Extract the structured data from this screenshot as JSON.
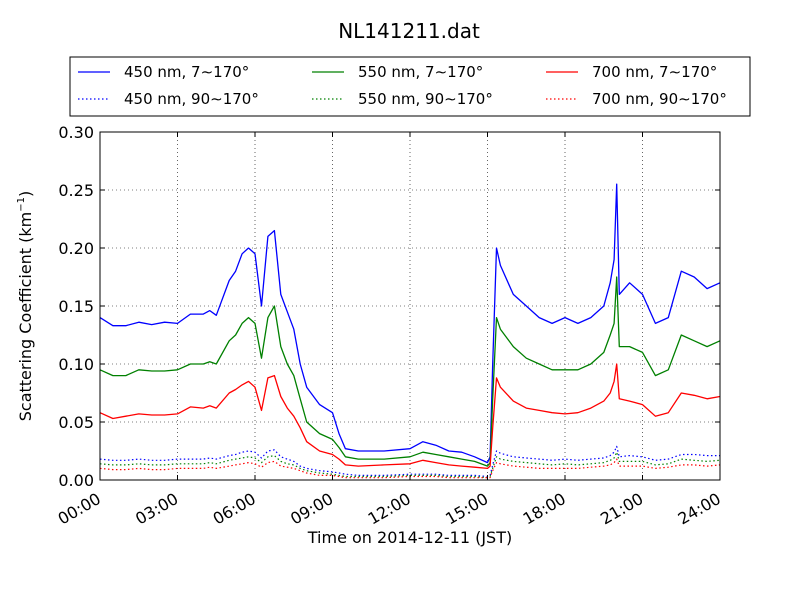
{
  "chart_data": {
    "type": "line",
    "title": "NL141211.dat",
    "xlabel": "Time on 2014-12-11 (JST)",
    "ylabel": "Scattering Coefficient (km",
    "ylabel_sup": "−1",
    "ylabel_close": ")",
    "xlim": [
      0,
      24
    ],
    "ylim": [
      0,
      0.3
    ],
    "grid": true,
    "legend_position": "top",
    "x_ticks": [
      0,
      3,
      6,
      9,
      12,
      15,
      18,
      21,
      24
    ],
    "x_tick_labels": [
      "00:00",
      "03:00",
      "06:00",
      "09:00",
      "12:00",
      "15:00",
      "18:00",
      "21:00",
      "24:00"
    ],
    "y_ticks": [
      0.0,
      0.05,
      0.1,
      0.15,
      0.2,
      0.25,
      0.3
    ],
    "y_tick_labels": [
      "0.00",
      "0.05",
      "0.10",
      "0.15",
      "0.20",
      "0.25",
      "0.30"
    ],
    "x": [
      0.0,
      0.5,
      1.0,
      1.5,
      2.0,
      2.5,
      3.0,
      3.5,
      4.0,
      4.25,
      4.5,
      5.0,
      5.25,
      5.5,
      5.75,
      6.0,
      6.25,
      6.5,
      6.75,
      7.0,
      7.25,
      7.5,
      7.75,
      8.0,
      8.5,
      9.0,
      9.25,
      9.5,
      10.0,
      11.0,
      12.0,
      12.5,
      13.0,
      13.5,
      14.0,
      14.5,
      15.0,
      15.1,
      15.2,
      15.35,
      15.5,
      16.0,
      16.5,
      17.0,
      17.5,
      18.0,
      18.5,
      19.0,
      19.5,
      19.75,
      19.9,
      20.0,
      20.1,
      20.5,
      21.0,
      21.5,
      22.0,
      22.5,
      23.0,
      23.5,
      24.0
    ],
    "series": [
      {
        "name": "450 nm, 7∼170°",
        "color": "#0000ff",
        "style": "solid",
        "values": [
          0.14,
          0.133,
          0.133,
          0.136,
          0.134,
          0.136,
          0.135,
          0.143,
          0.143,
          0.146,
          0.142,
          0.172,
          0.18,
          0.195,
          0.2,
          0.195,
          0.15,
          0.21,
          0.215,
          0.16,
          0.145,
          0.13,
          0.1,
          0.08,
          0.065,
          0.058,
          0.04,
          0.027,
          0.025,
          0.025,
          0.027,
          0.033,
          0.03,
          0.025,
          0.024,
          0.02,
          0.015,
          0.02,
          0.1,
          0.2,
          0.185,
          0.16,
          0.15,
          0.14,
          0.135,
          0.14,
          0.135,
          0.14,
          0.15,
          0.17,
          0.19,
          0.255,
          0.16,
          0.17,
          0.16,
          0.135,
          0.14,
          0.18,
          0.175,
          0.165,
          0.17
        ]
      },
      {
        "name": "550 nm, 7∼170°",
        "color": "#008000",
        "style": "solid",
        "values": [
          0.095,
          0.09,
          0.09,
          0.095,
          0.094,
          0.094,
          0.095,
          0.1,
          0.1,
          0.102,
          0.1,
          0.12,
          0.125,
          0.135,
          0.14,
          0.135,
          0.105,
          0.14,
          0.15,
          0.115,
          0.1,
          0.09,
          0.07,
          0.05,
          0.04,
          0.035,
          0.028,
          0.02,
          0.018,
          0.018,
          0.02,
          0.024,
          0.022,
          0.02,
          0.018,
          0.016,
          0.012,
          0.015,
          0.07,
          0.14,
          0.13,
          0.115,
          0.105,
          0.1,
          0.095,
          0.095,
          0.095,
          0.1,
          0.11,
          0.125,
          0.135,
          0.175,
          0.115,
          0.115,
          0.11,
          0.09,
          0.095,
          0.125,
          0.12,
          0.115,
          0.12
        ]
      },
      {
        "name": "700 nm, 7∼170°",
        "color": "#ff0000",
        "style": "solid",
        "values": [
          0.058,
          0.053,
          0.055,
          0.057,
          0.056,
          0.056,
          0.057,
          0.063,
          0.062,
          0.064,
          0.062,
          0.075,
          0.078,
          0.082,
          0.085,
          0.08,
          0.06,
          0.088,
          0.09,
          0.072,
          0.062,
          0.055,
          0.045,
          0.033,
          0.025,
          0.022,
          0.018,
          0.013,
          0.012,
          0.013,
          0.014,
          0.017,
          0.015,
          0.013,
          0.012,
          0.011,
          0.01,
          0.012,
          0.045,
          0.088,
          0.08,
          0.068,
          0.062,
          0.06,
          0.058,
          0.057,
          0.058,
          0.062,
          0.068,
          0.075,
          0.085,
          0.1,
          0.07,
          0.068,
          0.065,
          0.055,
          0.058,
          0.075,
          0.073,
          0.07,
          0.072
        ]
      },
      {
        "name": "450 nm, 90∼170°",
        "color": "#0000ff",
        "style": "dotted",
        "values": [
          0.018,
          0.017,
          0.017,
          0.018,
          0.017,
          0.017,
          0.018,
          0.018,
          0.018,
          0.019,
          0.018,
          0.021,
          0.022,
          0.024,
          0.025,
          0.024,
          0.019,
          0.025,
          0.026,
          0.02,
          0.018,
          0.016,
          0.012,
          0.01,
          0.008,
          0.007,
          0.006,
          0.005,
          0.004,
          0.004,
          0.005,
          0.005,
          0.005,
          0.004,
          0.004,
          0.004,
          0.003,
          0.004,
          0.013,
          0.025,
          0.023,
          0.02,
          0.019,
          0.018,
          0.017,
          0.018,
          0.017,
          0.018,
          0.019,
          0.021,
          0.024,
          0.029,
          0.02,
          0.021,
          0.02,
          0.017,
          0.018,
          0.022,
          0.022,
          0.021,
          0.021
        ]
      },
      {
        "name": "550 nm, 90∼170°",
        "color": "#008000",
        "style": "dotted",
        "values": [
          0.014,
          0.013,
          0.013,
          0.014,
          0.013,
          0.013,
          0.014,
          0.014,
          0.014,
          0.015,
          0.014,
          0.017,
          0.018,
          0.019,
          0.02,
          0.019,
          0.015,
          0.02,
          0.021,
          0.016,
          0.014,
          0.013,
          0.01,
          0.008,
          0.006,
          0.005,
          0.004,
          0.003,
          0.003,
          0.003,
          0.004,
          0.004,
          0.004,
          0.003,
          0.003,
          0.003,
          0.002,
          0.003,
          0.01,
          0.02,
          0.018,
          0.016,
          0.015,
          0.014,
          0.013,
          0.014,
          0.013,
          0.014,
          0.015,
          0.017,
          0.019,
          0.024,
          0.016,
          0.016,
          0.016,
          0.013,
          0.014,
          0.018,
          0.017,
          0.016,
          0.017
        ]
      },
      {
        "name": "700 nm, 90∼170°",
        "color": "#ff0000",
        "style": "dotted",
        "values": [
          0.01,
          0.009,
          0.009,
          0.01,
          0.009,
          0.009,
          0.01,
          0.01,
          0.01,
          0.011,
          0.01,
          0.012,
          0.013,
          0.014,
          0.015,
          0.014,
          0.011,
          0.015,
          0.016,
          0.012,
          0.011,
          0.01,
          0.008,
          0.006,
          0.004,
          0.004,
          0.003,
          0.002,
          0.002,
          0.002,
          0.003,
          0.003,
          0.003,
          0.002,
          0.002,
          0.002,
          0.002,
          0.002,
          0.008,
          0.015,
          0.014,
          0.012,
          0.011,
          0.01,
          0.01,
          0.01,
          0.01,
          0.011,
          0.012,
          0.013,
          0.015,
          0.018,
          0.012,
          0.012,
          0.012,
          0.01,
          0.011,
          0.013,
          0.013,
          0.012,
          0.013
        ]
      }
    ]
  }
}
